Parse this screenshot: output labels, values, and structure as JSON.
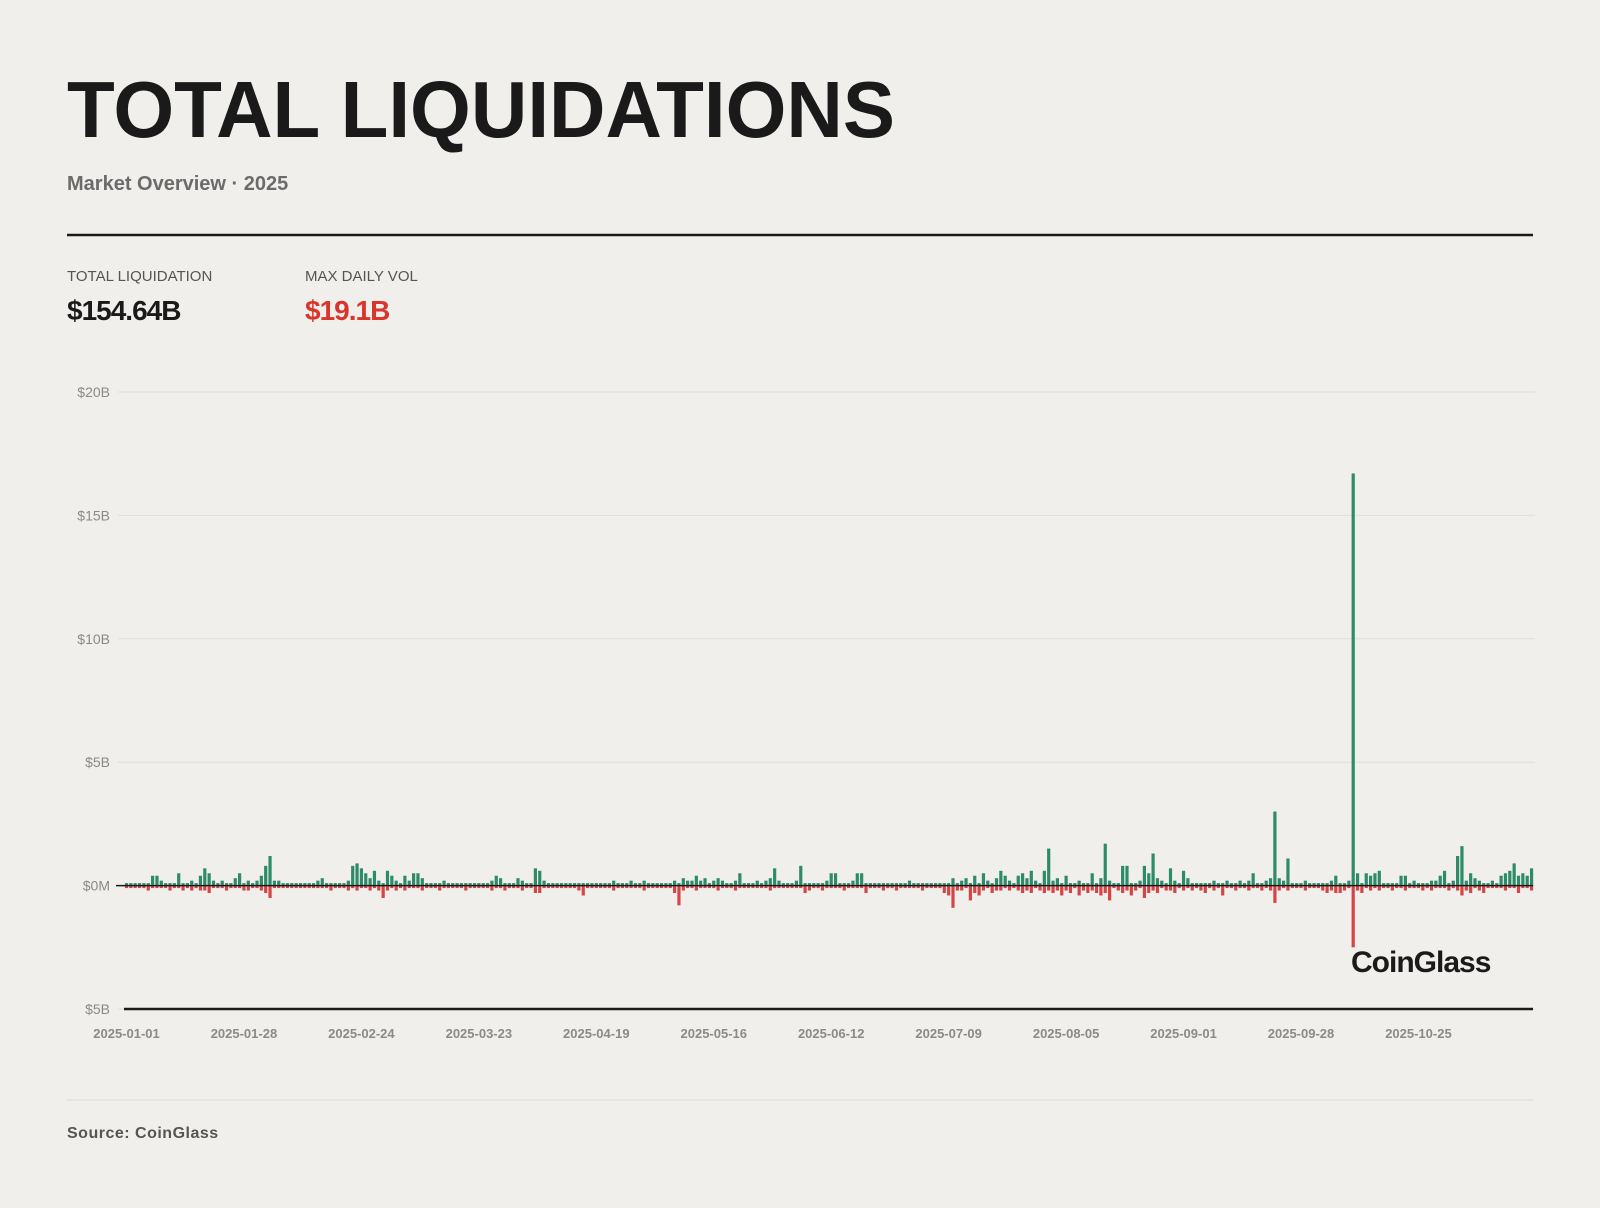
{
  "chart_data": {
    "type": "bar",
    "title": "TOTAL LIQUIDATIONS",
    "subtitle": "Market Overview · 2025",
    "stats": [
      {
        "label": "TOTAL LIQUIDATION",
        "value": "$154.64B",
        "color": "#1a1a1a"
      },
      {
        "label": "MAX DAILY VOL",
        "value": "$19.1B",
        "color": "#d9352b"
      }
    ],
    "watermark": "CoinGlass",
    "source": "Source: CoinGlass",
    "ylim": [
      -5,
      20
    ],
    "yticks": [
      {
        "value": 20,
        "label": "$20B"
      },
      {
        "value": 15,
        "label": "$15B"
      },
      {
        "value": 10,
        "label": "$10B"
      },
      {
        "value": 5,
        "label": "$5B"
      },
      {
        "value": 0,
        "label": "$0M"
      },
      {
        "value": -5,
        "label": "$5B"
      }
    ],
    "grid": true,
    "xticks": [
      "2025-01-01",
      "2025-01-28",
      "2025-02-24",
      "2025-03-23",
      "2025-04-19",
      "2025-05-16",
      "2025-06-12",
      "2025-07-09",
      "2025-08-05",
      "2025-09-01",
      "2025-09-28",
      "2025-10-25"
    ],
    "x": [
      "2025-01-01",
      "2025-01-02",
      "2025-01-03",
      "2025-01-04",
      "2025-01-05",
      "2025-01-06",
      "2025-01-07",
      "2025-01-08",
      "2025-01-09",
      "2025-01-10",
      "2025-01-11",
      "2025-01-12",
      "2025-01-13",
      "2025-01-14",
      "2025-01-15",
      "2025-01-16",
      "2025-01-17",
      "2025-01-18",
      "2025-01-19",
      "2025-01-20",
      "2025-01-21",
      "2025-01-22",
      "2025-01-23",
      "2025-01-24",
      "2025-01-25",
      "2025-01-26",
      "2025-01-27",
      "2025-01-28",
      "2025-01-29",
      "2025-01-30",
      "2025-01-31",
      "2025-02-01",
      "2025-02-02",
      "2025-02-03",
      "2025-02-04",
      "2025-02-05",
      "2025-02-06",
      "2025-02-07",
      "2025-02-08",
      "2025-02-09",
      "2025-02-10",
      "2025-02-11",
      "2025-02-12",
      "2025-02-13",
      "2025-02-14",
      "2025-02-15",
      "2025-02-16",
      "2025-02-17",
      "2025-02-18",
      "2025-02-19",
      "2025-02-20",
      "2025-02-21",
      "2025-02-22",
      "2025-02-23",
      "2025-02-24",
      "2025-02-25",
      "2025-02-26",
      "2025-02-27",
      "2025-02-28",
      "2025-03-01",
      "2025-03-02",
      "2025-03-03",
      "2025-03-04",
      "2025-03-05",
      "2025-03-06",
      "2025-03-07",
      "2025-03-08",
      "2025-03-09",
      "2025-03-10",
      "2025-03-11",
      "2025-03-12",
      "2025-03-13",
      "2025-03-14",
      "2025-03-15",
      "2025-03-16",
      "2025-03-17",
      "2025-03-18",
      "2025-03-19",
      "2025-03-20",
      "2025-03-21",
      "2025-03-22",
      "2025-03-23",
      "2025-03-24",
      "2025-03-25",
      "2025-03-26",
      "2025-03-27",
      "2025-03-28",
      "2025-03-29",
      "2025-03-30",
      "2025-03-31",
      "2025-04-01",
      "2025-04-02",
      "2025-04-03",
      "2025-04-04",
      "2025-04-05",
      "2025-04-06",
      "2025-04-07",
      "2025-04-08",
      "2025-04-09",
      "2025-04-10",
      "2025-04-11",
      "2025-04-12",
      "2025-04-13",
      "2025-04-14",
      "2025-04-15",
      "2025-04-16",
      "2025-04-17",
      "2025-04-18",
      "2025-04-19",
      "2025-04-20",
      "2025-04-21",
      "2025-04-22",
      "2025-04-23",
      "2025-04-24",
      "2025-04-25",
      "2025-04-26",
      "2025-04-27",
      "2025-04-28",
      "2025-04-29",
      "2025-04-30",
      "2025-05-01",
      "2025-05-02",
      "2025-05-03",
      "2025-05-04",
      "2025-05-05",
      "2025-05-06",
      "2025-05-07",
      "2025-05-08",
      "2025-05-09",
      "2025-05-10",
      "2025-05-11",
      "2025-05-12",
      "2025-05-13",
      "2025-05-14",
      "2025-05-15",
      "2025-05-16",
      "2025-05-17",
      "2025-05-18",
      "2025-05-19",
      "2025-05-20",
      "2025-05-21",
      "2025-05-22",
      "2025-05-23",
      "2025-05-24",
      "2025-05-25",
      "2025-05-26",
      "2025-05-27",
      "2025-05-28",
      "2025-05-29",
      "2025-05-30",
      "2025-05-31",
      "2025-06-01",
      "2025-06-02",
      "2025-06-03",
      "2025-06-04",
      "2025-06-05",
      "2025-06-06",
      "2025-06-07",
      "2025-06-08",
      "2025-06-09",
      "2025-06-10",
      "2025-06-11",
      "2025-06-12",
      "2025-06-13",
      "2025-06-14",
      "2025-06-15",
      "2025-06-16",
      "2025-06-17",
      "2025-06-18",
      "2025-06-19",
      "2025-06-20",
      "2025-06-21",
      "2025-06-22",
      "2025-06-23",
      "2025-06-24",
      "2025-06-25",
      "2025-06-26",
      "2025-06-27",
      "2025-06-28",
      "2025-06-29",
      "2025-06-30",
      "2025-07-01",
      "2025-07-02",
      "2025-07-03",
      "2025-07-04",
      "2025-07-05",
      "2025-07-06",
      "2025-07-07",
      "2025-07-08",
      "2025-07-09",
      "2025-07-10",
      "2025-07-11",
      "2025-07-12",
      "2025-07-13",
      "2025-07-14",
      "2025-07-15",
      "2025-07-16",
      "2025-07-17",
      "2025-07-18",
      "2025-07-19",
      "2025-07-20",
      "2025-07-21",
      "2025-07-22",
      "2025-07-23",
      "2025-07-24",
      "2025-07-25",
      "2025-07-26",
      "2025-07-27",
      "2025-07-28",
      "2025-07-29",
      "2025-07-30",
      "2025-07-31",
      "2025-08-01",
      "2025-08-02",
      "2025-08-03",
      "2025-08-04",
      "2025-08-05",
      "2025-08-06",
      "2025-08-07",
      "2025-08-08",
      "2025-08-09",
      "2025-08-10",
      "2025-08-11",
      "2025-08-12",
      "2025-08-13",
      "2025-08-14",
      "2025-08-15",
      "2025-08-16",
      "2025-08-17",
      "2025-08-18",
      "2025-08-19",
      "2025-08-20",
      "2025-08-21",
      "2025-08-22",
      "2025-08-23",
      "2025-08-24",
      "2025-08-25",
      "2025-08-26",
      "2025-08-27",
      "2025-08-28",
      "2025-08-29",
      "2025-08-30",
      "2025-08-31",
      "2025-09-01",
      "2025-09-02",
      "2025-09-03",
      "2025-09-04",
      "2025-09-05",
      "2025-09-06",
      "2025-09-07",
      "2025-09-08",
      "2025-09-09",
      "2025-09-10",
      "2025-09-11",
      "2025-09-12",
      "2025-09-13",
      "2025-09-14",
      "2025-09-15",
      "2025-09-16",
      "2025-09-17",
      "2025-09-18",
      "2025-09-19",
      "2025-09-20",
      "2025-09-21",
      "2025-09-22",
      "2025-09-23",
      "2025-09-24",
      "2025-09-25",
      "2025-09-26",
      "2025-09-27",
      "2025-09-28",
      "2025-09-29",
      "2025-09-30",
      "2025-10-01",
      "2025-10-02",
      "2025-10-03",
      "2025-10-04",
      "2025-10-05",
      "2025-10-06",
      "2025-10-07",
      "2025-10-08",
      "2025-10-09",
      "2025-10-10",
      "2025-10-11",
      "2025-10-12",
      "2025-10-13",
      "2025-10-14",
      "2025-10-15",
      "2025-10-16",
      "2025-10-17",
      "2025-10-18",
      "2025-10-19",
      "2025-10-20",
      "2025-10-21",
      "2025-10-22",
      "2025-10-23",
      "2025-10-24",
      "2025-10-25",
      "2025-10-26",
      "2025-10-27",
      "2025-10-28",
      "2025-10-29",
      "2025-10-30",
      "2025-10-31",
      "2025-11-01",
      "2025-11-02",
      "2025-11-03",
      "2025-11-04",
      "2025-11-05",
      "2025-11-06",
      "2025-11-07",
      "2025-11-08",
      "2025-11-09",
      "2025-11-10",
      "2025-11-11",
      "2025-11-12",
      "2025-11-13",
      "2025-11-14",
      "2025-11-15",
      "2025-11-16",
      "2025-11-17",
      "2025-11-18",
      "2025-11-19",
      "2025-11-20"
    ],
    "series": [
      {
        "color": "#2e8b6a",
        "values": [
          0.1,
          0.1,
          0.1,
          0.1,
          0.1,
          0.1,
          0.4,
          0.4,
          0.2,
          0.1,
          0.1,
          0.1,
          0.5,
          0.1,
          0.1,
          0.2,
          0.1,
          0.4,
          0.7,
          0.5,
          0.2,
          0.1,
          0.2,
          0.1,
          0.1,
          0.3,
          0.5,
          0.1,
          0.2,
          0.1,
          0.2,
          0.4,
          0.8,
          1.2,
          0.2,
          0.2,
          0.1,
          0.1,
          0.1,
          0.1,
          0.1,
          0.1,
          0.1,
          0.1,
          0.2,
          0.3,
          0.1,
          0.1,
          0.1,
          0.1,
          0.1,
          0.2,
          0.8,
          0.9,
          0.7,
          0.5,
          0.3,
          0.6,
          0.2,
          0.1,
          0.6,
          0.4,
          0.2,
          0.1,
          0.4,
          0.2,
          0.5,
          0.5,
          0.3,
          0.1,
          0.1,
          0.1,
          0.1,
          0.2,
          0.1,
          0.1,
          0.1,
          0.1,
          0.1,
          0.1,
          0.1,
          0.1,
          0.1,
          0.1,
          0.2,
          0.4,
          0.3,
          0.1,
          0.1,
          0.1,
          0.3,
          0.2,
          0.1,
          0.1,
          0.7,
          0.6,
          0.2,
          0.1,
          0.1,
          0.1,
          0.1,
          0.1,
          0.1,
          0.1,
          0.1,
          0.1,
          0.1,
          0.1,
          0.1,
          0.1,
          0.1,
          0.1,
          0.2,
          0.1,
          0.1,
          0.1,
          0.2,
          0.1,
          0.1,
          0.2,
          0.1,
          0.1,
          0.1,
          0.1,
          0.1,
          0.1,
          0.2,
          0.1,
          0.3,
          0.2,
          0.2,
          0.4,
          0.2,
          0.3,
          0.1,
          0.2,
          0.3,
          0.2,
          0.1,
          0.1,
          0.2,
          0.5,
          0.1,
          0.1,
          0.1,
          0.2,
          0.1,
          0.2,
          0.3,
          0.7,
          0.2,
          0.1,
          0.1,
          0.1,
          0.2,
          0.8,
          0.1,
          0.1,
          0.1,
          0.1,
          0.1,
          0.2,
          0.5,
          0.5,
          0.1,
          0.1,
          0.1,
          0.2,
          0.5,
          0.5,
          0.1,
          0.1,
          0.1,
          0.1,
          0.1,
          0.1,
          0.1,
          0.1,
          0.1,
          0.1,
          0.2,
          0.1,
          0.1,
          0.1,
          0.1,
          0.1,
          0.1,
          0.1,
          0.1,
          0.1,
          0.3,
          0.1,
          0.2,
          0.3,
          0.1,
          0.4,
          0.1,
          0.5,
          0.2,
          0.1,
          0.3,
          0.6,
          0.4,
          0.2,
          0.1,
          0.4,
          0.5,
          0.3,
          0.6,
          0.2,
          0.1,
          0.6,
          1.5,
          0.2,
          0.3,
          0.1,
          0.4,
          0.1,
          0.1,
          0.2,
          0.1,
          0.1,
          0.5,
          0.1,
          0.3,
          1.7,
          0.2,
          0.1,
          0.1,
          0.8,
          0.8,
          0.1,
          0.1,
          0.2,
          0.8,
          0.5,
          1.3,
          0.3,
          0.2,
          0.1,
          0.7,
          0.2,
          0.1,
          0.6,
          0.3,
          0.1,
          0.1,
          0.1,
          0.1,
          0.1,
          0.2,
          0.1,
          0.1,
          0.2,
          0.1,
          0.1,
          0.2,
          0.1,
          0.2,
          0.5,
          0.1,
          0.1,
          0.2,
          0.3,
          3.0,
          0.3,
          0.2,
          1.1,
          0.1,
          0.1,
          0.1,
          0.2,
          0.1,
          0.1,
          0.1,
          0.1,
          0.1,
          0.2,
          0.4,
          0.1,
          0.1,
          0.2,
          16.7,
          0.5,
          0.1,
          0.5,
          0.4,
          0.5,
          0.6,
          0.1,
          0.1,
          0.1,
          0.1,
          0.4,
          0.4,
          0.1,
          0.2,
          0.1,
          0.1,
          0.1,
          0.2,
          0.2,
          0.4,
          0.6,
          0.1,
          0.2,
          1.2,
          1.6,
          0.2,
          0.5,
          0.3,
          0.2,
          0.1,
          0.1,
          0.2,
          0.1,
          0.4,
          0.5,
          0.6,
          0.9,
          0.4,
          0.5,
          0.4,
          0.7
        ]
      },
      {
        "color": "#d64545",
        "values": [
          -0.1,
          -0.1,
          -0.1,
          -0.1,
          -0.1,
          -0.2,
          -0.1,
          -0.1,
          -0.1,
          -0.1,
          -0.2,
          -0.1,
          -0.1,
          -0.2,
          -0.1,
          -0.2,
          -0.1,
          -0.2,
          -0.2,
          -0.3,
          -0.1,
          -0.1,
          -0.1,
          -0.2,
          -0.1,
          -0.1,
          -0.1,
          -0.2,
          -0.2,
          -0.1,
          -0.1,
          -0.2,
          -0.3,
          -0.5,
          -0.1,
          -0.1,
          -0.1,
          -0.1,
          -0.1,
          -0.1,
          -0.1,
          -0.1,
          -0.1,
          -0.1,
          -0.1,
          -0.1,
          -0.1,
          -0.2,
          -0.1,
          -0.1,
          -0.1,
          -0.2,
          -0.1,
          -0.2,
          -0.1,
          -0.1,
          -0.2,
          -0.1,
          -0.2,
          -0.5,
          -0.2,
          -0.1,
          -0.2,
          -0.1,
          -0.2,
          -0.1,
          -0.1,
          -0.1,
          -0.2,
          -0.1,
          -0.1,
          -0.1,
          -0.2,
          -0.1,
          -0.1,
          -0.1,
          -0.1,
          -0.1,
          -0.2,
          -0.1,
          -0.1,
          -0.1,
          -0.1,
          -0.1,
          -0.2,
          -0.1,
          -0.1,
          -0.2,
          -0.1,
          -0.1,
          -0.1,
          -0.2,
          -0.1,
          -0.1,
          -0.3,
          -0.3,
          -0.1,
          -0.1,
          -0.1,
          -0.1,
          -0.1,
          -0.1,
          -0.1,
          -0.1,
          -0.2,
          -0.4,
          -0.1,
          -0.1,
          -0.1,
          -0.1,
          -0.1,
          -0.1,
          -0.2,
          -0.1,
          -0.1,
          -0.1,
          -0.1,
          -0.1,
          -0.1,
          -0.2,
          -0.1,
          -0.1,
          -0.1,
          -0.1,
          -0.1,
          -0.1,
          -0.3,
          -0.8,
          -0.2,
          -0.1,
          -0.1,
          -0.2,
          -0.1,
          -0.1,
          -0.1,
          -0.1,
          -0.2,
          -0.1,
          -0.1,
          -0.1,
          -0.2,
          -0.1,
          -0.1,
          -0.1,
          -0.1,
          -0.1,
          -0.1,
          -0.1,
          -0.2,
          -0.1,
          -0.1,
          -0.1,
          -0.1,
          -0.1,
          -0.1,
          -0.1,
          -0.3,
          -0.2,
          -0.1,
          -0.1,
          -0.2,
          -0.1,
          -0.1,
          -0.1,
          -0.1,
          -0.2,
          -0.1,
          -0.1,
          -0.1,
          -0.1,
          -0.3,
          -0.1,
          -0.1,
          -0.1,
          -0.2,
          -0.1,
          -0.1,
          -0.2,
          -0.1,
          -0.1,
          -0.1,
          -0.1,
          -0.1,
          -0.2,
          -0.1,
          -0.1,
          -0.1,
          -0.1,
          -0.3,
          -0.4,
          -0.9,
          -0.2,
          -0.2,
          -0.1,
          -0.6,
          -0.3,
          -0.4,
          -0.2,
          -0.1,
          -0.3,
          -0.2,
          -0.2,
          -0.1,
          -0.2,
          -0.1,
          -0.2,
          -0.3,
          -0.2,
          -0.3,
          -0.1,
          -0.2,
          -0.3,
          -0.2,
          -0.3,
          -0.2,
          -0.4,
          -0.2,
          -0.3,
          -0.1,
          -0.4,
          -0.2,
          -0.3,
          -0.2,
          -0.3,
          -0.4,
          -0.3,
          -0.6,
          -0.1,
          -0.2,
          -0.3,
          -0.2,
          -0.4,
          -0.2,
          -0.1,
          -0.5,
          -0.3,
          -0.2,
          -0.3,
          -0.1,
          -0.2,
          -0.2,
          -0.3,
          -0.1,
          -0.2,
          -0.1,
          -0.2,
          -0.1,
          -0.2,
          -0.3,
          -0.1,
          -0.2,
          -0.1,
          -0.4,
          -0.1,
          -0.1,
          -0.2,
          -0.1,
          -0.1,
          -0.2,
          -0.1,
          -0.1,
          -0.2,
          -0.1,
          -0.2,
          -0.7,
          -0.2,
          -0.1,
          -0.2,
          -0.1,
          -0.1,
          -0.1,
          -0.2,
          -0.1,
          -0.1,
          -0.1,
          -0.2,
          -0.3,
          -0.2,
          -0.3,
          -0.3,
          -0.2,
          -0.1,
          -2.5,
          -0.2,
          -0.3,
          -0.1,
          -0.2,
          -0.1,
          -0.2,
          -0.1,
          -0.1,
          -0.2,
          -0.1,
          -0.1,
          -0.2,
          -0.1,
          -0.1,
          -0.1,
          -0.2,
          -0.1,
          -0.2,
          -0.1,
          -0.1,
          -0.1,
          -0.2,
          -0.1,
          -0.2,
          -0.4,
          -0.2,
          -0.3,
          -0.1,
          -0.2,
          -0.3,
          -0.1,
          -0.1,
          -0.1,
          -0.1,
          -0.2,
          -0.1,
          -0.1,
          -0.3,
          -0.1,
          -0.1,
          -0.2
        ]
      }
    ]
  }
}
